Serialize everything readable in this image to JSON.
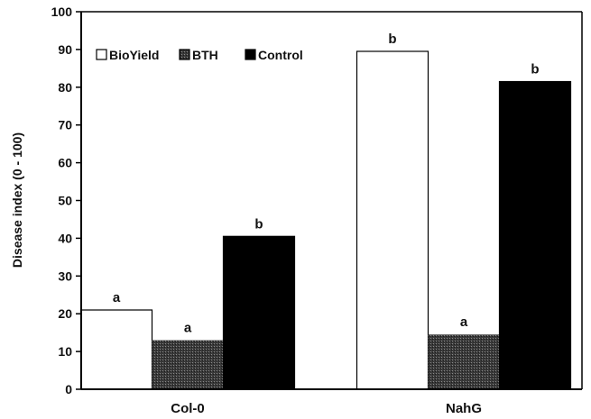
{
  "chart_data": {
    "type": "bar",
    "title": "",
    "xlabel": "",
    "ylabel": "Disease index (0 - 100)",
    "ylim": [
      0,
      100
    ],
    "yticks": [
      0,
      10,
      20,
      30,
      40,
      50,
      60,
      70,
      80,
      90,
      100
    ],
    "grid": false,
    "legend_position": "top-left",
    "categories": [
      "Col-0",
      "NahG"
    ],
    "series": [
      {
        "name": "BioYield",
        "values": [
          21,
          89.5
        ],
        "letters": [
          "a",
          "b"
        ],
        "fill": "#ffffff",
        "pattern": "solid"
      },
      {
        "name": "BTH",
        "values": [
          13,
          14.5
        ],
        "letters": [
          "a",
          "a"
        ],
        "fill": "#2a2a2a",
        "pattern": "stipple"
      },
      {
        "name": "Control",
        "values": [
          40.5,
          81.5
        ],
        "letters": [
          "b",
          "b"
        ],
        "fill": "#000000",
        "pattern": "solid"
      }
    ],
    "colors": {
      "axis": "#000000",
      "text": "#111111"
    }
  }
}
